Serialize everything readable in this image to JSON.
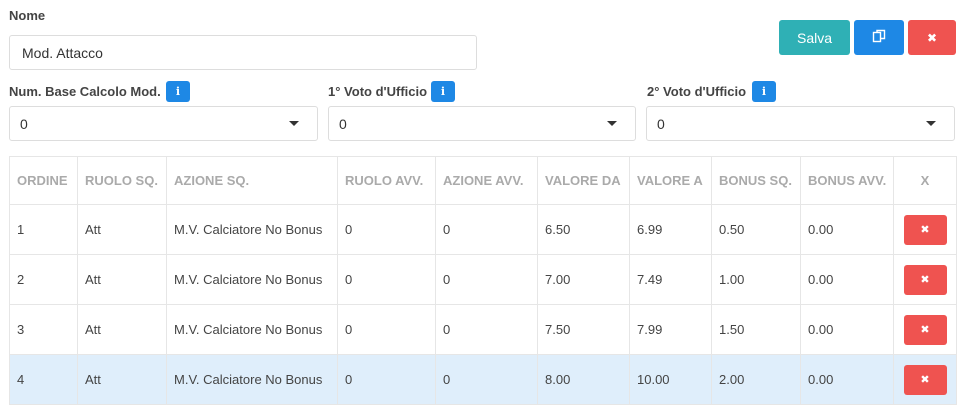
{
  "form": {
    "name_label": "Nome",
    "name_value": "Mod. Attacco"
  },
  "buttons": {
    "save_label": "Salva",
    "copy_icon": "copy-icon",
    "close_icon": "close-icon",
    "close_glyph": "✖"
  },
  "fields": {
    "base_calc": {
      "label": "Num. Base Calcolo Mod.",
      "value": "0"
    },
    "vote1": {
      "label": "1° Voto d'Ufficio",
      "value": "0"
    },
    "vote2": {
      "label": "2° Voto d'Ufficio",
      "value": "0"
    },
    "info_glyph": "i"
  },
  "table": {
    "headers": [
      "ORDINE",
      "RUOLO SQ.",
      "AZIONE SQ.",
      "RUOLO AVV.",
      "AZIONE AVV.",
      "VALORE DA",
      "VALORE A",
      "BONUS SQ.",
      "BONUS AVV.",
      "X"
    ],
    "rows": [
      [
        "1",
        "Att",
        "M.V. Calciatore No Bonus",
        "0",
        "0",
        "6.50",
        "6.99",
        "0.50",
        "0.00"
      ],
      [
        "2",
        "Att",
        "M.V. Calciatore No Bonus",
        "0",
        "0",
        "7.00",
        "7.49",
        "1.00",
        "0.00"
      ],
      [
        "3",
        "Att",
        "M.V. Calciatore No Bonus",
        "0",
        "0",
        "7.50",
        "7.99",
        "1.50",
        "0.00"
      ],
      [
        "4",
        "Att",
        "M.V. Calciatore No Bonus",
        "0",
        "0",
        "8.00",
        "10.00",
        "2.00",
        "0.00"
      ]
    ],
    "highlighted_row": 3,
    "delete_glyph": "✖"
  },
  "colors": {
    "save": "#2fb0b5",
    "primary": "#1e88e5",
    "danger": "#ef5350",
    "row_highlight": "#dfeefb"
  }
}
